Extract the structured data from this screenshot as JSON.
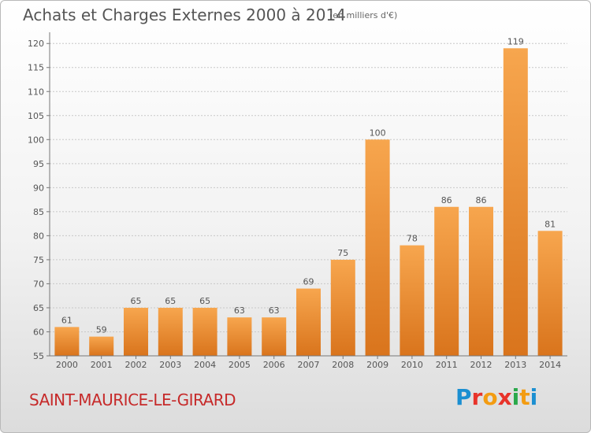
{
  "header": {
    "title": "Achats et Charges Externes 2000 à 2014",
    "subtitle": "(en milliers d'€)"
  },
  "footer": {
    "commune": "SAINT-MAURICE-LE-GIRARD",
    "logo_letters": [
      "P",
      "r",
      "o",
      "x",
      "i",
      "t",
      "i"
    ],
    "logo_colors": [
      "#1b8fd1",
      "#e8332a",
      "#f39c12",
      "#e8332a",
      "#2aa84a",
      "#f39c12",
      "#1b8fd1"
    ]
  },
  "chart_data": {
    "type": "bar",
    "categories": [
      "2000",
      "2001",
      "2002",
      "2003",
      "2004",
      "2005",
      "2006",
      "2007",
      "2008",
      "2009",
      "2010",
      "2011",
      "2012",
      "2013",
      "2014"
    ],
    "values": [
      61,
      59,
      65,
      65,
      65,
      63,
      63,
      69,
      75,
      100,
      78,
      86,
      86,
      119,
      81
    ],
    "data_labels": [
      "61",
      "59",
      "65",
      "65",
      "65",
      "63",
      "63",
      "69",
      "75",
      "100",
      "78",
      "86",
      "86",
      "119",
      "81"
    ],
    "ylim": [
      55,
      122
    ],
    "yticks": [
      55,
      60,
      65,
      70,
      75,
      80,
      85,
      90,
      95,
      100,
      105,
      110,
      115,
      120
    ],
    "ytick_labels": [
      "55",
      "60",
      "65",
      "70",
      "75",
      "80",
      "85",
      "90",
      "95",
      "100",
      "105",
      "110",
      "115",
      "120"
    ],
    "grid": true,
    "bar_color": "#f29a3d"
  }
}
